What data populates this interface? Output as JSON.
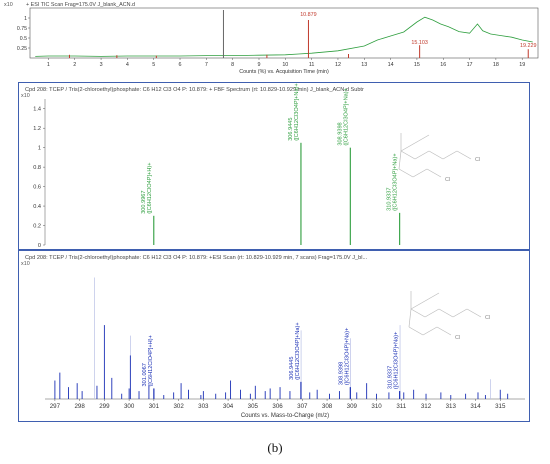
{
  "chart_data": [
    {
      "type": "line",
      "title": "+ ESI TIC Scan Frag=175.0V J_blank_ACN.d",
      "xlabel": "Counts (%) vs. Acquisition Time (min)",
      "ylabel": "x10",
      "xlim": [
        0.3,
        19.6
      ],
      "ylim": [
        0,
        1.25
      ],
      "x_ticks": [
        "1",
        "2",
        "3",
        "4",
        "5",
        "6",
        "7",
        "8",
        "9",
        "10",
        "11",
        "12",
        "13",
        "14",
        "15",
        "16",
        "17",
        "18",
        "19"
      ],
      "y_ticks": [
        "0.25",
        "0.5",
        "0.75",
        "1"
      ],
      "annotations": [
        {
          "label": "10.879",
          "x": 10.879,
          "y": 1.0
        },
        {
          "label": "15.103",
          "x": 15.103,
          "y": 0.3
        },
        {
          "label": "19.229",
          "x": 19.229,
          "y": 0.22
        }
      ],
      "series": [
        {
          "color": "#2e9e3e",
          "x": [
            0.5,
            1,
            2,
            3,
            4,
            5,
            6,
            7,
            8,
            9,
            10,
            10.5,
            11,
            12,
            13,
            13.5,
            14,
            14.5,
            15,
            15.3,
            15.6,
            15.9,
            16.2,
            16.6,
            17,
            17.3,
            17.5,
            17.8,
            18.2,
            18.6,
            19,
            19.4
          ],
          "y": [
            0.04,
            0.05,
            0.05,
            0.04,
            0.05,
            0.05,
            0.05,
            0.06,
            0.06,
            0.07,
            0.08,
            0.1,
            0.12,
            0.18,
            0.3,
            0.45,
            0.55,
            0.65,
            0.9,
            1.02,
            0.95,
            0.85,
            0.78,
            0.66,
            0.62,
            0.85,
            0.68,
            0.6,
            0.56,
            0.52,
            0.45,
            0.4
          ]
        }
      ],
      "spikes": [
        {
          "x": 7.65,
          "y": 1.2,
          "color": "#666666"
        },
        {
          "x": 10.879,
          "y": 0.95,
          "color": "#c0392b"
        },
        {
          "x": 15.103,
          "y": 0.32,
          "color": "#c0392b"
        },
        {
          "x": 19.229,
          "y": 0.22,
          "color": "#c0392b"
        },
        {
          "x": 1.8,
          "y": 0.08,
          "color": "#c0392b"
        },
        {
          "x": 3.6,
          "y": 0.07,
          "color": "#c0392b"
        },
        {
          "x": 5.1,
          "y": 0.06,
          "color": "#c0392b"
        },
        {
          "x": 9.3,
          "y": 0.08,
          "color": "#c0392b"
        },
        {
          "x": 12.4,
          "y": 0.1,
          "color": "#c0392b"
        }
      ]
    },
    {
      "type": "bar",
      "title": "Cpd 208: TCEP / Tris(2-chloroethyl)phosphate: C6 H12 Cl3 O4 P: 10.879: + FBF Spectrum (rt: 10.829-10.929 min) J_blank_ACN.d  Subtr",
      "ylabel": "x10",
      "xlim": [
        296.6,
        316.0
      ],
      "ylim": [
        0,
        1.5
      ],
      "y_ticks": [
        "0",
        "0.2",
        "0.4",
        "0.6",
        "0.8",
        "1",
        "1.2",
        "1.4"
      ],
      "x": [
        300.9967,
        306.9445,
        308.9398,
        310.9337
      ],
      "values": [
        0.3,
        1.05,
        1.0,
        0.33
      ],
      "color": "#2e9e3e",
      "peak_labels": [
        {
          "mz": "300.9967",
          "formula": "([C6H12ClO4P]+H)+"
        },
        {
          "mz": "306.9445",
          "formula": "([C6H12Cl3O4P]+Na)+"
        },
        {
          "mz": "308.9398",
          "formula": "([C6H12Cl3O4P]+Na)+"
        },
        {
          "mz": "310.9337",
          "formula": "([C6H12Cl3O4P]+Na)+"
        }
      ]
    },
    {
      "type": "bar",
      "title": "Cpd 208: TCEP / Tris(2-chloroethyl)phosphate: C6 H12 Cl3 O4 P: 10.879: +ESI Scan (rt: 10.829-10.929 min, 7 scans) Frag=175.0V J_bl...",
      "xlabel": "Counts vs. Mass-to-Charge (m/z)",
      "ylabel": "x10",
      "xlim": [
        296.6,
        316.0
      ],
      "ylim": [
        0,
        1.0
      ],
      "x_ticks": [
        "297",
        "298",
        "299",
        "300",
        "301",
        "302",
        "303",
        "304",
        "305",
        "306",
        "307",
        "308",
        "309",
        "310",
        "311",
        "312",
        "313",
        "314",
        "315"
      ],
      "x": [
        301.0,
        306.9445,
        308.9398,
        310.9337
      ],
      "values": [
        0.08,
        0.13,
        0.09,
        0.06
      ],
      "color": "#1a2fb5",
      "peak_labels": [
        {
          "mz": "301.0067",
          "formula": "([C6H12ClO4P]+H)+"
        },
        {
          "mz": "306.9445",
          "formula": "([C6H12Cl3O4P]+Na)+"
        },
        {
          "mz": "308.9398",
          "formula": "([C6H12Cl3O4P]+Na)+"
        },
        {
          "mz": "310.9337",
          "formula": "([C6H12Cl3O4P]+Na)+"
        }
      ],
      "noise_peaks": [
        {
          "x": 297.0,
          "y": 0.14
        },
        {
          "x": 297.2,
          "y": 0.2
        },
        {
          "x": 297.55,
          "y": 0.09
        },
        {
          "x": 297.9,
          "y": 0.12
        },
        {
          "x": 298.1,
          "y": 0.06
        },
        {
          "x": 298.7,
          "y": 0.1
        },
        {
          "x": 299.0,
          "y": 0.56
        },
        {
          "x": 299.3,
          "y": 0.16
        },
        {
          "x": 299.7,
          "y": 0.04
        },
        {
          "x": 300.0,
          "y": 0.08
        },
        {
          "x": 300.05,
          "y": 0.33
        },
        {
          "x": 300.4,
          "y": 0.06
        },
        {
          "x": 300.8,
          "y": 0.1
        },
        {
          "x": 301.4,
          "y": 0.03
        },
        {
          "x": 301.8,
          "y": 0.05
        },
        {
          "x": 302.1,
          "y": 0.12
        },
        {
          "x": 302.4,
          "y": 0.07
        },
        {
          "x": 302.9,
          "y": 0.03
        },
        {
          "x": 303.0,
          "y": 0.06
        },
        {
          "x": 303.5,
          "y": 0.04
        },
        {
          "x": 303.9,
          "y": 0.05
        },
        {
          "x": 304.1,
          "y": 0.14
        },
        {
          "x": 304.5,
          "y": 0.07
        },
        {
          "x": 304.9,
          "y": 0.04
        },
        {
          "x": 305.1,
          "y": 0.1
        },
        {
          "x": 305.5,
          "y": 0.06
        },
        {
          "x": 305.7,
          "y": 0.08
        },
        {
          "x": 306.1,
          "y": 0.09
        },
        {
          "x": 306.5,
          "y": 0.06
        },
        {
          "x": 307.3,
          "y": 0.05
        },
        {
          "x": 307.6,
          "y": 0.07
        },
        {
          "x": 308.1,
          "y": 0.04
        },
        {
          "x": 308.5,
          "y": 0.06
        },
        {
          "x": 309.2,
          "y": 0.05
        },
        {
          "x": 309.6,
          "y": 0.12
        },
        {
          "x": 310.0,
          "y": 0.04
        },
        {
          "x": 310.5,
          "y": 0.05
        },
        {
          "x": 311.1,
          "y": 0.05
        },
        {
          "x": 311.5,
          "y": 0.07
        },
        {
          "x": 312.0,
          "y": 0.04
        },
        {
          "x": 312.6,
          "y": 0.05
        },
        {
          "x": 313.0,
          "y": 0.03
        },
        {
          "x": 313.6,
          "y": 0.04
        },
        {
          "x": 314.1,
          "y": 0.05
        },
        {
          "x": 314.4,
          "y": 0.03
        },
        {
          "x": 315.0,
          "y": 0.07
        },
        {
          "x": 315.3,
          "y": 0.04
        }
      ],
      "light_peaks": [
        {
          "x": 298.6,
          "y": 0.92
        },
        {
          "x": 300.05,
          "y": 0.48
        },
        {
          "x": 306.95,
          "y": 0.52
        },
        {
          "x": 308.95,
          "y": 0.46
        },
        {
          "x": 310.95,
          "y": 0.56
        },
        {
          "x": 314.6,
          "y": 0.15
        }
      ]
    }
  ],
  "caption": "(b)",
  "molecule": {
    "atom_label": "Cl"
  }
}
